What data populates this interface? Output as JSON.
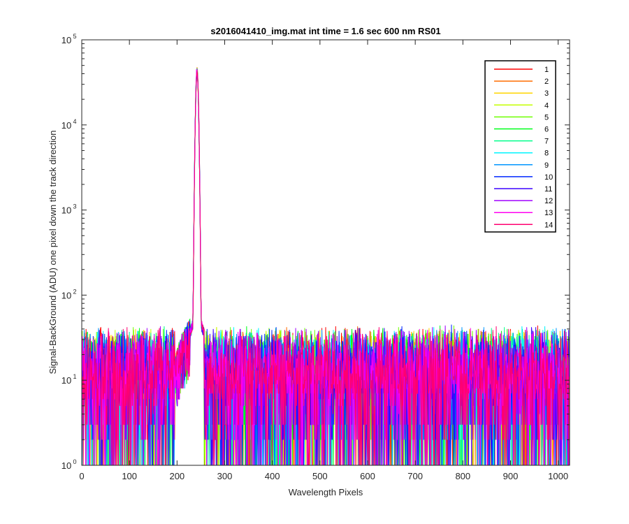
{
  "chart_data": {
    "type": "line",
    "title": "s2016041410_img.mat int time = 1.6 sec  600 nm RS01",
    "xlabel": "Wavelength Pixels",
    "ylabel": "Signal-BackGround (ADU) one pixel down the track direction",
    "xlim": [
      0,
      1024
    ],
    "ylim": [
      1,
      100000
    ],
    "yscale": "log",
    "grid": false,
    "legend_position": "top-right",
    "x_ticks": [
      0,
      100,
      200,
      300,
      400,
      500,
      600,
      700,
      800,
      900,
      1000
    ],
    "x_tick_labels": [
      "0",
      "100",
      "200",
      "300",
      "400",
      "500",
      "600",
      "700",
      "800",
      "900",
      "1000"
    ],
    "y_ticks": [
      1,
      10,
      100,
      1000,
      10000,
      100000
    ],
    "y_tick_labels": [
      {
        "base": "10",
        "exp": "0"
      },
      {
        "base": "10",
        "exp": "1"
      },
      {
        "base": "10",
        "exp": "2"
      },
      {
        "base": "10",
        "exp": "3"
      },
      {
        "base": "10",
        "exp": "4"
      },
      {
        "base": "10",
        "exp": "5"
      }
    ],
    "peak": {
      "x": 242,
      "y": 43000
    },
    "noise_level": {
      "typical": 10,
      "min": 1,
      "max": 45
    },
    "series": [
      {
        "name": "1",
        "color": "#ff0000"
      },
      {
        "name": "2",
        "color": "#ff6e00"
      },
      {
        "name": "3",
        "color": "#ffd500"
      },
      {
        "name": "4",
        "color": "#c4ff00"
      },
      {
        "name": "5",
        "color": "#6eff00"
      },
      {
        "name": "6",
        "color": "#00ff1a"
      },
      {
        "name": "7",
        "color": "#00ff8c"
      },
      {
        "name": "8",
        "color": "#00f5ff"
      },
      {
        "name": "9",
        "color": "#0096ff"
      },
      {
        "name": "10",
        "color": "#0028ff"
      },
      {
        "name": "11",
        "color": "#3c00ff"
      },
      {
        "name": "12",
        "color": "#a000ff"
      },
      {
        "name": "13",
        "color": "#ff00f0"
      },
      {
        "name": "14",
        "color": "#ff0070"
      }
    ]
  }
}
